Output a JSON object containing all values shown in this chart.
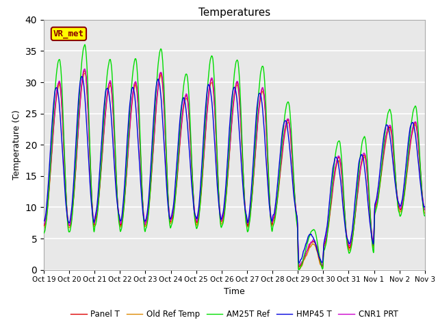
{
  "title": "Temperatures",
  "xlabel": "Time",
  "ylabel": "Temperature (C)",
  "ylim": [
    0,
    40
  ],
  "yticks": [
    0,
    5,
    10,
    15,
    20,
    25,
    30,
    35,
    40
  ],
  "plot_bg_color": "#e8e8e8",
  "figure_bg": "#ffffff",
  "legend_labels": [
    "Panel T",
    "Old Ref Temp",
    "AM25T Ref",
    "HMP45 T",
    "CNR1 PRT"
  ],
  "legend_colors": [
    "#dd0000",
    "#dd8800",
    "#00dd00",
    "#0000dd",
    "#cc00cc"
  ],
  "annotation_text": "VR_met",
  "annotation_bg": "#ffff00",
  "annotation_border": "#8B0000",
  "xtick_labels": [
    "Oct 19",
    "Oct 20",
    "Oct 21",
    "Oct 22",
    "Oct 23",
    "Oct 24",
    "Oct 25",
    "Oct 26",
    "Oct 27",
    "Oct 28",
    "Oct 29",
    "Oct 30",
    "Oct 31",
    "Nov 1",
    "Nov 2",
    "Nov 3"
  ],
  "grid_color": "#ffffff",
  "grid_lw": 1.2
}
